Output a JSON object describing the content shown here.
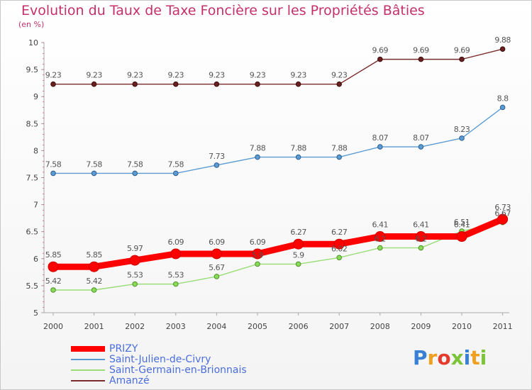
{
  "chart_data": {
    "type": "line",
    "title": "Evolution du Taux de Taxe Foncière sur les Propriétés Bâties",
    "ylabel": "(en %)",
    "xlabel": "",
    "categories": [
      "2000",
      "2001",
      "2002",
      "2003",
      "2004",
      "2005",
      "2006",
      "2007",
      "2008",
      "2009",
      "2010",
      "2011"
    ],
    "ylim": [
      5,
      10
    ],
    "yticks": [
      "5",
      "5.5",
      "6",
      "6.5",
      "7",
      "7.5",
      "8",
      "8.5",
      "9",
      "9.5",
      "10"
    ],
    "grid": false,
    "legend_position": "bottom-left",
    "series": [
      {
        "name": "PRIZY",
        "color": "#ff0000",
        "values": [
          5.85,
          5.85,
          5.97,
          6.09,
          6.09,
          6.09,
          6.27,
          6.27,
          6.41,
          6.41,
          6.41,
          6.73
        ],
        "labels": [
          "5.85",
          "5.85",
          "5.97",
          "6.09",
          "6.09",
          "6.09",
          "6.27",
          "6.27",
          "6.41",
          "6.41",
          "6.41",
          "6.73"
        ]
      },
      {
        "name": "Saint-Julien-de-Civry",
        "color": "#5a9bd3",
        "values": [
          7.58,
          7.58,
          7.58,
          7.58,
          7.73,
          7.88,
          7.88,
          7.88,
          8.07,
          8.07,
          8.23,
          8.8
        ],
        "labels": [
          "7.58",
          "7.58",
          "7.58",
          "7.58",
          "7.73",
          "7.88",
          "7.88",
          "7.88",
          "8.07",
          "8.07",
          "8.23",
          "8.8"
        ]
      },
      {
        "name": "Saint-Germain-en-Brionnais",
        "color": "#99dd77",
        "values": [
          5.42,
          5.42,
          5.53,
          5.53,
          5.67,
          5.9,
          5.9,
          6.02,
          6.2,
          6.2,
          6.51,
          6.67
        ],
        "labels": [
          "5.42",
          "5.42",
          "5.53",
          "5.53",
          "5.67",
          "5.9",
          "5.9",
          "6.02",
          "6.2",
          "6.2",
          "6.51",
          "6.67"
        ]
      },
      {
        "name": "Amanzé",
        "color": "#7a2b2b",
        "values": [
          9.23,
          9.23,
          9.23,
          9.23,
          9.23,
          9.23,
          9.23,
          9.23,
          9.69,
          9.69,
          9.69,
          9.88
        ],
        "labels": [
          "9.23",
          "9.23",
          "9.23",
          "9.23",
          "9.23",
          "9.23",
          "9.23",
          "9.23",
          "9.69",
          "9.69",
          "9.69",
          "9.88"
        ]
      }
    ]
  },
  "logo": {
    "letters": [
      "P",
      "r",
      "o",
      "x",
      "i",
      "t",
      "i"
    ]
  }
}
